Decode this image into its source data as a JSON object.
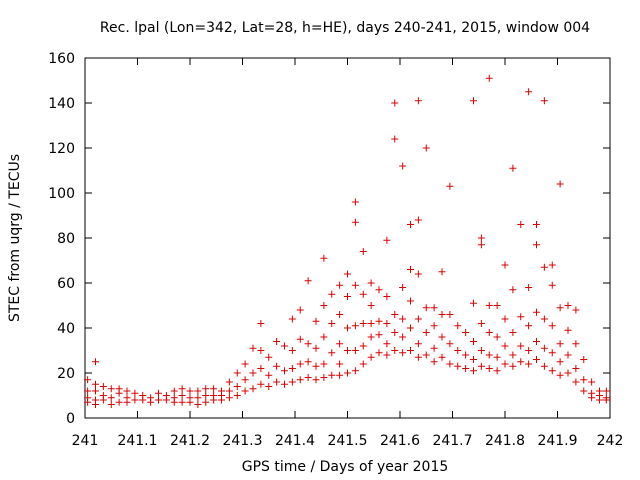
{
  "chart_data": {
    "type": "scatter",
    "title": "Rec. lpal (Lon=342, Lat=28, h=HE), days 240-241, 2015, window 004",
    "xlabel": "GPS time / Days of year 2015",
    "ylabel": "STEC from uqrg / TECUs",
    "xlim": [
      241,
      242
    ],
    "ylim": [
      0,
      160
    ],
    "xticks": [
      241,
      241.1,
      241.2,
      241.3,
      241.4,
      241.5,
      241.6,
      241.7,
      241.8,
      241.9,
      242
    ],
    "xtick_labels": [
      "241",
      "241.1",
      "241.2",
      "241.3",
      "241.4",
      "241.5",
      "241.6",
      "241.7",
      "241.8",
      "241.9",
      "242"
    ],
    "yticks": [
      0,
      20,
      40,
      60,
      80,
      100,
      120,
      140,
      160
    ],
    "ytick_labels": [
      "0",
      "20",
      "40",
      "60",
      "80",
      "100",
      "120",
      "140",
      "160"
    ],
    "marker": "plus",
    "marker_color": "#dd0000",
    "axis_color": "#000000",
    "grid": false,
    "series": [
      {
        "points": [
          [
            241.005,
            17
          ],
          [
            241.005,
            12
          ],
          [
            241.005,
            9
          ],
          [
            241.005,
            7
          ],
          [
            241.02,
            25
          ],
          [
            241.02,
            15
          ],
          [
            241.02,
            12
          ],
          [
            241.02,
            8
          ],
          [
            241.02,
            6
          ],
          [
            241.035,
            14
          ],
          [
            241.035,
            10
          ],
          [
            241.035,
            8
          ],
          [
            241.05,
            13
          ],
          [
            241.05,
            9
          ],
          [
            241.05,
            6
          ],
          [
            241.065,
            13
          ],
          [
            241.065,
            11
          ],
          [
            241.065,
            7
          ],
          [
            241.08,
            12
          ],
          [
            241.08,
            9
          ],
          [
            241.08,
            7
          ],
          [
            241.095,
            11
          ],
          [
            241.095,
            8
          ],
          [
            241.11,
            10
          ],
          [
            241.11,
            8
          ],
          [
            241.125,
            9
          ],
          [
            241.125,
            7
          ],
          [
            241.14,
            11
          ],
          [
            241.14,
            8
          ],
          [
            241.155,
            10
          ],
          [
            241.155,
            8
          ],
          [
            241.17,
            12
          ],
          [
            241.17,
            9
          ],
          [
            241.17,
            7
          ],
          [
            241.185,
            13
          ],
          [
            241.185,
            10
          ],
          [
            241.185,
            7
          ],
          [
            241.2,
            12
          ],
          [
            241.2,
            9
          ],
          [
            241.2,
            7
          ],
          [
            241.215,
            12
          ],
          [
            241.215,
            9
          ],
          [
            241.215,
            6
          ],
          [
            241.23,
            13
          ],
          [
            241.23,
            10
          ],
          [
            241.23,
            7
          ],
          [
            241.245,
            13
          ],
          [
            241.245,
            10
          ],
          [
            241.245,
            8
          ],
          [
            241.26,
            12
          ],
          [
            241.26,
            10
          ],
          [
            241.26,
            8
          ],
          [
            241.275,
            16
          ],
          [
            241.275,
            12
          ],
          [
            241.275,
            9
          ],
          [
            241.29,
            20
          ],
          [
            241.29,
            14
          ],
          [
            241.29,
            10
          ],
          [
            241.305,
            24
          ],
          [
            241.305,
            17
          ],
          [
            241.305,
            12
          ],
          [
            241.32,
            31
          ],
          [
            241.32,
            20
          ],
          [
            241.32,
            13
          ],
          [
            241.335,
            42
          ],
          [
            241.335,
            30
          ],
          [
            241.335,
            22
          ],
          [
            241.335,
            15
          ],
          [
            241.35,
            27
          ],
          [
            241.35,
            19
          ],
          [
            241.35,
            14
          ],
          [
            241.365,
            34
          ],
          [
            241.365,
            23
          ],
          [
            241.365,
            16
          ],
          [
            241.38,
            32
          ],
          [
            241.38,
            21
          ],
          [
            241.38,
            15
          ],
          [
            241.395,
            44
          ],
          [
            241.395,
            30
          ],
          [
            241.395,
            22
          ],
          [
            241.395,
            16
          ],
          [
            241.41,
            48
          ],
          [
            241.41,
            35
          ],
          [
            241.41,
            24
          ],
          [
            241.41,
            17
          ],
          [
            241.425,
            61
          ],
          [
            241.425,
            33
          ],
          [
            241.425,
            25
          ],
          [
            241.425,
            18
          ],
          [
            241.44,
            43
          ],
          [
            241.44,
            31
          ],
          [
            241.44,
            23
          ],
          [
            241.44,
            17
          ],
          [
            241.455,
            71
          ],
          [
            241.455,
            50
          ],
          [
            241.455,
            36
          ],
          [
            241.455,
            24
          ],
          [
            241.455,
            18
          ],
          [
            241.47,
            55
          ],
          [
            241.47,
            42
          ],
          [
            241.47,
            29
          ],
          [
            241.47,
            19
          ],
          [
            241.485,
            59
          ],
          [
            241.485,
            46
          ],
          [
            241.485,
            33
          ],
          [
            241.485,
            24
          ],
          [
            241.485,
            19
          ],
          [
            241.5,
            64
          ],
          [
            241.5,
            54
          ],
          [
            241.5,
            40
          ],
          [
            241.5,
            30
          ],
          [
            241.5,
            20
          ],
          [
            241.515,
            96
          ],
          [
            241.515,
            87
          ],
          [
            241.515,
            59
          ],
          [
            241.515,
            41
          ],
          [
            241.515,
            30
          ],
          [
            241.515,
            21
          ],
          [
            241.53,
            74
          ],
          [
            241.53,
            55
          ],
          [
            241.53,
            42
          ],
          [
            241.53,
            32
          ],
          [
            241.53,
            24
          ],
          [
            241.545,
            60
          ],
          [
            241.545,
            50
          ],
          [
            241.545,
            42
          ],
          [
            241.545,
            36
          ],
          [
            241.545,
            27
          ],
          [
            241.56,
            57
          ],
          [
            241.56,
            43
          ],
          [
            241.56,
            37
          ],
          [
            241.56,
            29
          ],
          [
            241.575,
            79
          ],
          [
            241.575,
            54
          ],
          [
            241.575,
            42
          ],
          [
            241.575,
            33
          ],
          [
            241.575,
            28
          ],
          [
            241.59,
            140
          ],
          [
            241.59,
            124
          ],
          [
            241.59,
            46
          ],
          [
            241.59,
            38
          ],
          [
            241.59,
            30
          ],
          [
            241.605,
            112
          ],
          [
            241.605,
            58
          ],
          [
            241.605,
            44
          ],
          [
            241.605,
            36
          ],
          [
            241.605,
            29
          ],
          [
            241.62,
            86
          ],
          [
            241.62,
            66
          ],
          [
            241.62,
            52
          ],
          [
            241.62,
            40
          ],
          [
            241.62,
            30
          ],
          [
            241.635,
            141
          ],
          [
            241.635,
            88
          ],
          [
            241.635,
            64
          ],
          [
            241.635,
            44
          ],
          [
            241.635,
            33
          ],
          [
            241.635,
            27
          ],
          [
            241.65,
            120
          ],
          [
            241.65,
            49
          ],
          [
            241.65,
            38
          ],
          [
            241.65,
            28
          ],
          [
            241.665,
            49
          ],
          [
            241.665,
            41
          ],
          [
            241.665,
            31
          ],
          [
            241.665,
            25
          ],
          [
            241.68,
            65
          ],
          [
            241.68,
            46
          ],
          [
            241.68,
            36
          ],
          [
            241.68,
            27
          ],
          [
            241.695,
            103
          ],
          [
            241.695,
            46
          ],
          [
            241.695,
            33
          ],
          [
            241.695,
            24
          ],
          [
            241.71,
            41
          ],
          [
            241.71,
            30
          ],
          [
            241.71,
            23
          ],
          [
            241.725,
            38
          ],
          [
            241.725,
            28
          ],
          [
            241.725,
            22
          ],
          [
            241.74,
            141
          ],
          [
            241.74,
            51
          ],
          [
            241.74,
            34
          ],
          [
            241.74,
            26
          ],
          [
            241.74,
            21
          ],
          [
            241.755,
            80
          ],
          [
            241.755,
            77
          ],
          [
            241.755,
            42
          ],
          [
            241.755,
            30
          ],
          [
            241.755,
            23
          ],
          [
            241.77,
            151
          ],
          [
            241.77,
            50
          ],
          [
            241.77,
            38
          ],
          [
            241.77,
            28
          ],
          [
            241.77,
            22
          ],
          [
            241.785,
            50
          ],
          [
            241.785,
            36
          ],
          [
            241.785,
            27
          ],
          [
            241.785,
            21
          ],
          [
            241.8,
            68
          ],
          [
            241.8,
            44
          ],
          [
            241.8,
            32
          ],
          [
            241.8,
            24
          ],
          [
            241.815,
            111
          ],
          [
            241.815,
            57
          ],
          [
            241.815,
            38
          ],
          [
            241.815,
            28
          ],
          [
            241.815,
            23
          ],
          [
            241.83,
            86
          ],
          [
            241.83,
            45
          ],
          [
            241.83,
            32
          ],
          [
            241.83,
            25
          ],
          [
            241.845,
            145
          ],
          [
            241.845,
            58
          ],
          [
            241.845,
            41
          ],
          [
            241.845,
            30
          ],
          [
            241.845,
            24
          ],
          [
            241.86,
            86
          ],
          [
            241.86,
            77
          ],
          [
            241.86,
            47
          ],
          [
            241.86,
            34
          ],
          [
            241.86,
            26
          ],
          [
            241.875,
            141
          ],
          [
            241.875,
            67
          ],
          [
            241.875,
            44
          ],
          [
            241.875,
            31
          ],
          [
            241.875,
            23
          ],
          [
            241.89,
            68
          ],
          [
            241.89,
            59
          ],
          [
            241.89,
            41
          ],
          [
            241.89,
            29
          ],
          [
            241.89,
            21
          ],
          [
            241.905,
            104
          ],
          [
            241.905,
            49
          ],
          [
            241.905,
            33
          ],
          [
            241.905,
            25
          ],
          [
            241.905,
            19
          ],
          [
            241.92,
            50
          ],
          [
            241.92,
            39
          ],
          [
            241.92,
            28
          ],
          [
            241.92,
            20
          ],
          [
            241.935,
            48
          ],
          [
            241.935,
            33
          ],
          [
            241.935,
            22
          ],
          [
            241.935,
            16
          ],
          [
            241.95,
            26
          ],
          [
            241.95,
            17
          ],
          [
            241.95,
            12
          ],
          [
            241.965,
            16
          ],
          [
            241.965,
            11
          ],
          [
            241.965,
            9
          ],
          [
            241.98,
            12
          ],
          [
            241.98,
            10
          ],
          [
            241.98,
            8
          ],
          [
            241.993,
            12
          ],
          [
            241.993,
            9
          ],
          [
            241.993,
            8
          ]
        ]
      }
    ]
  }
}
